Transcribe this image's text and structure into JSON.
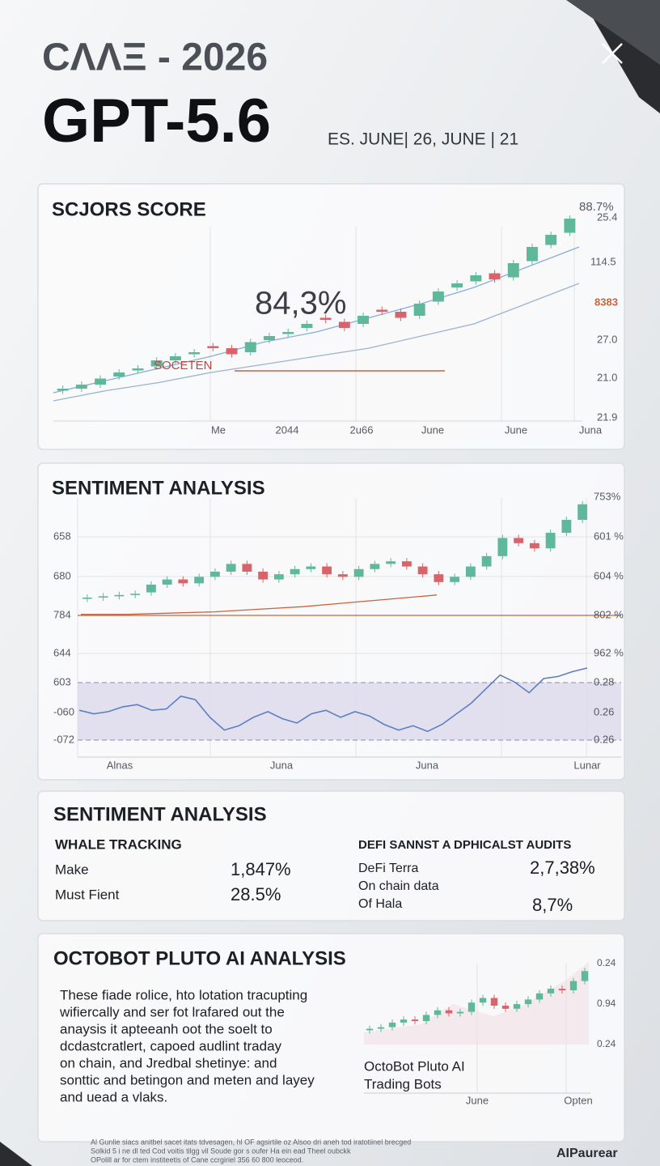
{
  "header": {
    "kicker": "CΛΛΞ - 2026",
    "title": "GPT-5.6",
    "dates": "ES. JUNE| 26, JUNE | 21"
  },
  "score_panel": {
    "title": "SCJORS SCORE",
    "callout": "84,3%",
    "legend": "SOCETEN",
    "right_labels": [
      "88.7%",
      "25.4",
      "114.5",
      "8383",
      "27.0",
      "21.0",
      "21.9"
    ],
    "x_labels": [
      "Me",
      "2044",
      "2u66",
      "June",
      "June",
      "Juna"
    ],
    "chart": {
      "type": "candlestick",
      "ylim": [
        0,
        100
      ],
      "open": [
        9,
        10,
        12,
        16,
        19,
        21,
        24,
        27,
        31,
        30,
        28,
        34,
        37,
        40,
        45,
        43,
        42,
        49,
        48,
        46,
        53,
        60,
        63,
        67,
        65,
        73,
        81,
        87
      ],
      "close": [
        10,
        12,
        15,
        18,
        20,
        24,
        26,
        28,
        30,
        27,
        33,
        36,
        38,
        42,
        44,
        40,
        46,
        48,
        45,
        52,
        58,
        62,
        66,
        64,
        72,
        80,
        86,
        94
      ],
      "lines": [
        {
          "color": "#86aedb",
          "values": [
            8,
            14,
            20,
            26,
            33,
            38,
            45,
            52,
            60,
            70,
            80
          ]
        },
        {
          "color": "#9bb3cf",
          "values": [
            4,
            9,
            13,
            18,
            22,
            26,
            30,
            36,
            42,
            52,
            62
          ]
        }
      ]
    }
  },
  "sentiment_panel": {
    "title": "SENTIMENT ANALYSIS",
    "left_labels": [
      "658",
      "680",
      "784",
      "644",
      "603",
      "-060",
      "-072"
    ],
    "right_labels": [
      "753%",
      "601 %",
      "604 %",
      "802 %",
      "962 %",
      "0.28",
      "0.26",
      "0.26"
    ],
    "x_labels": [
      "Alnas",
      "Juna",
      "Juna",
      "Lunar"
    ],
    "chart": {
      "type": "candlestick",
      "ylim": [
        0,
        100
      ],
      "open": [
        19,
        20,
        21,
        22,
        24,
        30,
        34,
        31,
        36,
        40,
        46,
        40,
        34,
        38,
        42,
        44,
        38,
        36,
        42,
        46,
        48,
        44,
        38,
        32,
        36,
        44,
        52,
        66,
        62,
        58,
        70,
        80
      ],
      "close": [
        20,
        21,
        22,
        23,
        30,
        34,
        31,
        36,
        40,
        46,
        40,
        34,
        38,
        42,
        44,
        38,
        36,
        42,
        46,
        48,
        44,
        38,
        32,
        36,
        44,
        52,
        66,
        62,
        58,
        70,
        80,
        92
      ],
      "trend": {
        "color": "#c8643c",
        "values": [
          7,
          7,
          8,
          9,
          11,
          13,
          16,
          19,
          22
        ]
      },
      "oscillator": {
        "color": "#5d7fc1",
        "ylim": [
          0,
          100
        ],
        "values": [
          40,
          35,
          38,
          45,
          48,
          40,
          42,
          60,
          55,
          30,
          12,
          18,
          30,
          38,
          28,
          22,
          35,
          40,
          30,
          38,
          32,
          20,
          12,
          18,
          10,
          20,
          35,
          50,
          70,
          90,
          80,
          65,
          85,
          88,
          95,
          100
        ]
      }
    }
  },
  "stats_panel": {
    "title": "SENTIMENT ANALYSIS",
    "left": {
      "heading": "WHALE TRACKING",
      "rows": [
        {
          "label": "Make",
          "value": "1,847%"
        },
        {
          "label": "Must Fient",
          "value": "28.5%"
        }
      ]
    },
    "right": {
      "heading": "DEFI SANNST A DPHICALST AUDITS",
      "rows": [
        {
          "label": "DeFi Terra",
          "value": "2,7,38%"
        },
        {
          "label": "On chain data"
        },
        {
          "label": "Of Hala",
          "value": "8,7%"
        }
      ]
    }
  },
  "analysis_panel": {
    "title": "OCTOBOT PLUTO AI ANALYSIS",
    "paragraph": [
      "These fiade rolice, hto lotation tracupting",
      "wifiercally and ser fot lrafared out the",
      "anaysis it apteeanh oot the soelt to",
      "dcdastcratlert, capoed audlint traday",
      "on chain, and Jredbal shetinye: and",
      "sonttic and betingon and meten and layey",
      "and uead a vlaks."
    ],
    "right_labels": [
      "0.24",
      "0.94",
      "0.24"
    ],
    "caption": [
      "OctoBot Pluto AI",
      "Trading Bots"
    ],
    "x_labels": [
      "June",
      "Opten"
    ],
    "chart": {
      "type": "candlestick",
      "ylim": [
        0,
        100
      ],
      "open": [
        8,
        10,
        12,
        18,
        22,
        20,
        28,
        34,
        30,
        32,
        44,
        50,
        40,
        36,
        42,
        48,
        56,
        62,
        60,
        72
      ],
      "close": [
        10,
        12,
        18,
        22,
        20,
        28,
        34,
        30,
        32,
        44,
        50,
        40,
        36,
        42,
        48,
        56,
        62,
        60,
        72,
        85
      ]
    }
  },
  "footer": {
    "disclaimer": [
      "Al Gunlie siacs anitbel sacet itats tdvesagen, hl OF agsirtile oz Alsoo dri aneh tod iratotiinel brecged",
      "Solkid 5 i ne dl ted Cod voitis tilgg vil Soude gor s oufer Ha ein ead Theel oubckk",
      "OPolill ar for ctem institeetis of Cane ccrgiriel 356 60 800 leoceod."
    ],
    "brand": "AIPaurear"
  }
}
